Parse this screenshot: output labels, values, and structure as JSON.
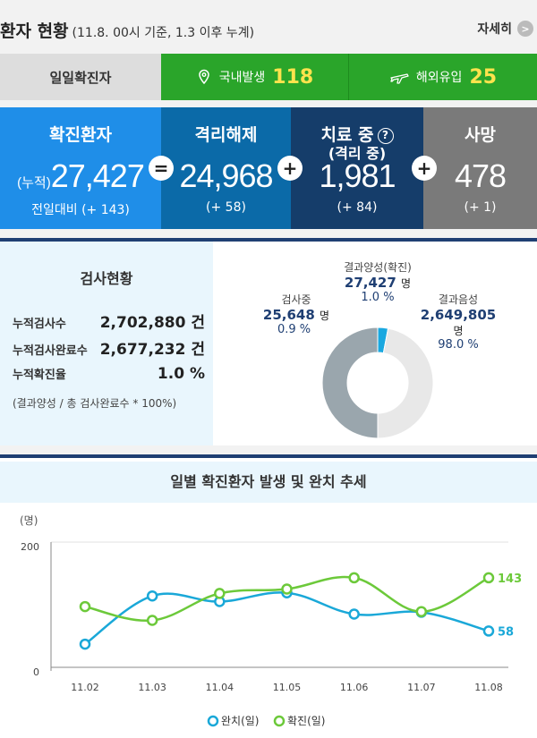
{
  "header": {
    "title": "환자 현황",
    "subtitle": "(11.8. 00시 기준, 1.3 이후 누계)",
    "more_label": "자세히"
  },
  "daily": {
    "label": "일일확진자",
    "domestic_label": "국내발생",
    "domestic_value": "118",
    "overseas_label": "해외유입",
    "overseas_value": "25"
  },
  "stats": {
    "confirmed": {
      "title": "확진환자",
      "prefix": "(누적)",
      "value": "27,427",
      "sub": "전일대비 (+ 143)"
    },
    "released": {
      "title": "격리해제",
      "value": "24,968",
      "sub": "(+ 58)"
    },
    "treating": {
      "title": "치료 중",
      "title2": "(격리 중)",
      "value": "1,981",
      "sub": "(+ 84)"
    },
    "deaths": {
      "title": "사망",
      "value": "478",
      "sub": "(+ 1)"
    },
    "op_equals": "=",
    "op_plus": "+"
  },
  "testing": {
    "title": "검사현황",
    "rows": [
      {
        "label": "누적검사수",
        "value": "2,702,880 건"
      },
      {
        "label": "누적검사완료수",
        "value": "2,677,232 건"
      },
      {
        "label": "누적확진율",
        "value": "1.0 %"
      }
    ],
    "note": "(결과양성 / 총 검사완료수 * 100%)",
    "pie": {
      "positive": {
        "label": "결과양성(확진)",
        "value": "27,427",
        "unit": "명",
        "pct": "1.0 %",
        "fraction": 0.01
      },
      "testing": {
        "label": "검사중",
        "value": "25,648",
        "unit": "명",
        "pct": "0.9 %",
        "fraction": 0.009
      },
      "negative": {
        "label": "결과음성",
        "value": "2,649,805",
        "unit": "명",
        "pct": "98.0 %",
        "fraction": 0.98
      }
    },
    "colors": {
      "positive": "#1aa8e0",
      "testing": "#9aa6ad",
      "negative": "#e8e8e8"
    }
  },
  "chart_data": {
    "type": "line",
    "title": "일별 확진환자 발생 및 완치 추세",
    "ylabel": "(명)",
    "ylim": [
      0,
      200
    ],
    "yticks": [
      "0",
      "200"
    ],
    "categories": [
      "11.02",
      "11.03",
      "11.04",
      "11.05",
      "11.06",
      "11.07",
      "11.08"
    ],
    "series": [
      {
        "name": "완치(일)",
        "color": "#1aa8d8",
        "values": [
          37,
          114,
          105,
          119,
          85,
          88,
          58
        ]
      },
      {
        "name": "확진(일)",
        "color": "#6cc93a",
        "values": [
          97,
          75,
          118,
          125,
          143,
          89,
          143
        ]
      }
    ],
    "end_labels": [
      "58",
      "143"
    ],
    "grid": false,
    "legend": "bottom"
  }
}
